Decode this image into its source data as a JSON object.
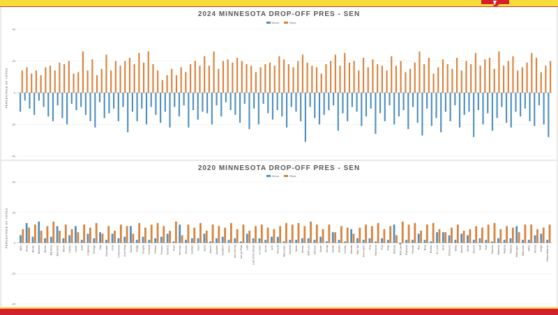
{
  "colors": {
    "dem": "#4f8fbd",
    "rep": "#d9823b",
    "grid": "#ececec",
    "axis": "#bdbdbd"
  },
  "chart_data": [
    {
      "type": "bar",
      "title": "2024 MINNESOTA DROP-OFF PRES - SEN",
      "ylabel": "PERCENTAGE OF VOTES",
      "ylim": [
        -40,
        40
      ],
      "yticks": [
        -40,
        -20,
        0,
        20,
        40
      ],
      "grid": true,
      "legend": "top-center",
      "series": [
        {
          "name": "Dems",
          "values": [
            -12,
            -5,
            -10,
            -14,
            -5,
            -9,
            -15,
            -18,
            -8,
            -16,
            -20,
            -7,
            -11,
            -9,
            -14,
            -18,
            -22,
            -6,
            -16,
            -13,
            -10,
            -18,
            -9,
            -25,
            -12,
            -18,
            -10,
            -20,
            -9,
            -14,
            -19,
            -12,
            -22,
            -9,
            -15,
            -8,
            -22,
            -11,
            -17,
            -12,
            -13,
            -20,
            -8,
            -15,
            -6,
            -11,
            -14,
            -19,
            -7,
            -23,
            -10,
            -20,
            -7,
            -13,
            -17,
            -11,
            -15,
            -22,
            -9,
            -12,
            -18,
            -31,
            -9,
            -16,
            -20,
            -14,
            -11,
            -8,
            -24,
            -13,
            -18,
            -9,
            -12,
            -21,
            -15,
            -10,
            -26,
            -13,
            -18,
            -8,
            -20,
            -15,
            -11,
            -23,
            -9,
            -19,
            -27,
            -10,
            -21,
            -16,
            -25,
            -12,
            -18,
            -8,
            -22,
            -14,
            -12,
            -28,
            -11,
            -20,
            -13,
            -24,
            -16,
            -9,
            -19,
            -22,
            -12,
            -15,
            -10,
            -18,
            -21,
            -8,
            -20,
            -28
          ]
        },
        {
          "name": "Reps",
          "values": [
            14,
            16,
            12,
            14,
            11,
            16,
            17,
            14,
            19,
            18,
            20,
            12,
            13,
            26,
            14,
            21,
            11,
            15,
            24,
            14,
            20,
            17,
            20,
            22,
            18,
            25,
            19,
            26,
            18,
            14,
            8,
            11,
            15,
            11,
            16,
            13,
            18,
            20,
            17,
            23,
            17,
            26,
            15,
            20,
            21,
            19,
            22,
            20,
            18,
            17,
            13,
            16,
            18,
            19,
            17,
            23,
            21,
            18,
            16,
            20,
            24,
            19,
            17,
            16,
            12,
            18,
            20,
            24,
            17,
            25,
            19,
            20,
            14,
            22,
            16,
            21,
            18,
            17,
            14,
            23,
            17,
            20,
            13,
            15,
            19,
            26,
            18,
            22,
            12,
            16,
            21,
            18,
            15,
            22,
            14,
            20,
            18,
            25,
            17,
            21,
            22,
            15,
            26,
            17,
            20,
            23,
            14,
            16,
            19,
            25,
            22,
            13,
            17,
            20
          ]
        }
      ]
    },
    {
      "type": "bar",
      "title": "2020 MINNESOTA DROP-OFF PRES - SEN",
      "ylabel": "PERCENTAGE OF VOTES",
      "ylim": [
        -40,
        40
      ],
      "yticks": [
        -40,
        -20,
        0,
        20,
        40
      ],
      "grid": true,
      "legend": "top-center",
      "categories": [
        "Aitkin",
        "Anoka",
        "Becker",
        "Beltrami",
        "Benton",
        "Big Stone",
        "Blue Earth",
        "Brown",
        "Carlton",
        "Carver",
        "Cass",
        "Chippewa",
        "Chisago",
        "Clay",
        "Clearwater",
        "Cook",
        "Cottonwood",
        "Crow Wing",
        "Dakota",
        "Dodge",
        "Douglas",
        "Faribault",
        "Fillmore",
        "Freeborn",
        "Goodhue",
        "Grant",
        "Hennepin",
        "Houston",
        "Hubbard",
        "Isanti",
        "Itasca",
        "Jackson",
        "Kanabec",
        "Kandiyohi",
        "Kittson",
        "Koochiching",
        "Lac qui Parle",
        "Lake",
        "Lake of the Woods",
        "Le Sueur",
        "Lincoln",
        "Lyon",
        "McLeod",
        "Mahnomen",
        "Marshall",
        "Martin",
        "Meeker",
        "Mille Lacs",
        "Morrison",
        "Mower",
        "Murray",
        "Nicollet",
        "Nobles",
        "Norman",
        "Olmsted",
        "Otter Tail",
        "Pennington",
        "Pine",
        "Pipestone",
        "Polk",
        "Pope",
        "Ramsey",
        "Red Lake",
        "Redwood",
        "Renville",
        "Rice",
        "Rock",
        "Roseau",
        "St. Louis",
        "Scott",
        "Sherburne",
        "Sibley",
        "Stearns",
        "Steele",
        "Stevens",
        "Swift",
        "Todd",
        "Traverse",
        "Wabasha",
        "Wadena",
        "Waseca",
        "Washington",
        "Watonwan",
        "Wilkin",
        "Winona",
        "Wright",
        "Yellow Medicine"
      ],
      "series": [
        {
          "name": "Dems",
          "values": [
            5,
            13,
            4,
            14,
            3,
            4,
            11,
            3,
            5,
            11,
            2,
            6,
            3,
            7,
            2,
            6,
            3,
            4,
            11,
            2,
            4,
            2,
            3,
            4,
            6,
            1,
            12,
            2,
            3,
            3,
            6,
            1,
            3,
            4,
            2,
            3,
            1,
            6,
            3,
            3,
            2,
            4,
            4,
            1,
            2,
            2,
            3,
            3,
            2,
            4,
            1,
            7,
            2,
            1,
            9,
            3,
            2,
            3,
            1,
            3,
            2,
            12,
            -1,
            2,
            2,
            6,
            2,
            1,
            7,
            7,
            5,
            2,
            6,
            5,
            2,
            3,
            2,
            1,
            3,
            2,
            3,
            11,
            2,
            2,
            5,
            6,
            2
          ]
        },
        {
          "name": "Reps",
          "values": [
            9,
            10,
            12,
            8,
            11,
            14,
            8,
            12,
            9,
            7,
            12,
            10,
            13,
            6,
            11,
            8,
            12,
            11,
            6,
            13,
            10,
            12,
            13,
            11,
            8,
            14,
            5,
            12,
            10,
            13,
            8,
            12,
            11,
            10,
            13,
            9,
            12,
            8,
            11,
            12,
            10,
            9,
            11,
            13,
            12,
            13,
            11,
            14,
            12,
            9,
            12,
            7,
            11,
            10,
            6,
            10,
            12,
            11,
            13,
            9,
            11,
            5,
            14,
            12,
            13,
            8,
            12,
            13,
            9,
            7,
            10,
            12,
            8,
            9,
            11,
            10,
            12,
            13,
            9,
            11,
            10,
            7,
            12,
            12,
            9,
            10,
            12
          ]
        }
      ]
    }
  ]
}
